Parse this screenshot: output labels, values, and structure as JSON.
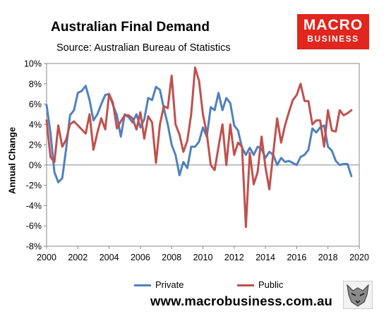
{
  "header": {
    "title": "Australian Final Demand",
    "subtitle": "Source: Australian Bureau of Statistics"
  },
  "logo": {
    "line1": "MACRO",
    "line2": "BUSINESS",
    "color": "#e0261d"
  },
  "footer": {
    "url": "www.macrobusiness.com.au"
  },
  "chart_data": {
    "type": "line",
    "ylabel": "Annual Change",
    "xlim": [
      2000,
      2020
    ],
    "ylim": [
      -8,
      10
    ],
    "y_ticks": [
      -8,
      -6,
      -4,
      -2,
      0,
      2,
      4,
      6,
      8,
      10
    ],
    "y_tick_labels": [
      "-8%",
      "-6%",
      "-4%",
      "-2%",
      "0%",
      "2%",
      "4%",
      "6%",
      "8%",
      "10%"
    ],
    "x_ticks": [
      2000,
      2002,
      2004,
      2006,
      2008,
      2010,
      2012,
      2014,
      2016,
      2018,
      2020
    ],
    "x_tick_labels": [
      "2000",
      "2002",
      "2004",
      "2006",
      "2008",
      "2010",
      "2012",
      "2014",
      "2016",
      "2018",
      "2020"
    ],
    "grid": false,
    "legend_position": "bottom",
    "series": [
      {
        "name": "Private",
        "color": "#4f81bd",
        "points": [
          [
            2000.0,
            5.9
          ],
          [
            2000.25,
            3.2
          ],
          [
            2000.5,
            -0.7
          ],
          [
            2000.75,
            -1.7
          ],
          [
            2001.0,
            -1.3
          ],
          [
            2001.25,
            1.6
          ],
          [
            2001.5,
            4.9
          ],
          [
            2001.75,
            5.4
          ],
          [
            2002.0,
            7.1
          ],
          [
            2002.25,
            7.3
          ],
          [
            2002.5,
            7.8
          ],
          [
            2002.75,
            6.4
          ],
          [
            2003.0,
            4.4
          ],
          [
            2003.25,
            5.0
          ],
          [
            2003.5,
            6.0
          ],
          [
            2003.75,
            6.9
          ],
          [
            2004.0,
            7.0
          ],
          [
            2004.25,
            5.9
          ],
          [
            2004.5,
            4.9
          ],
          [
            2004.75,
            2.8
          ],
          [
            2005.0,
            5.0
          ],
          [
            2005.25,
            4.7
          ],
          [
            2005.5,
            4.2
          ],
          [
            2005.75,
            5.0
          ],
          [
            2006.0,
            3.7
          ],
          [
            2006.25,
            4.5
          ],
          [
            2006.5,
            6.6
          ],
          [
            2006.75,
            6.4
          ],
          [
            2007.0,
            7.7
          ],
          [
            2007.25,
            7.4
          ],
          [
            2007.5,
            5.6
          ],
          [
            2007.75,
            4.0
          ],
          [
            2008.0,
            2.0
          ],
          [
            2008.25,
            1.0
          ],
          [
            2008.5,
            -1.0
          ],
          [
            2008.75,
            0.3
          ],
          [
            2009.0,
            -0.3
          ],
          [
            2009.25,
            1.8
          ],
          [
            2009.5,
            1.8
          ],
          [
            2009.75,
            2.3
          ],
          [
            2010.0,
            3.7
          ],
          [
            2010.25,
            2.8
          ],
          [
            2010.5,
            5.7
          ],
          [
            2010.75,
            5.4
          ],
          [
            2011.0,
            7.1
          ],
          [
            2011.25,
            5.4
          ],
          [
            2011.5,
            6.6
          ],
          [
            2011.75,
            6.1
          ],
          [
            2012.0,
            3.9
          ],
          [
            2012.25,
            3.4
          ],
          [
            2012.5,
            1.7
          ],
          [
            2012.75,
            1.0
          ],
          [
            2013.0,
            1.7
          ],
          [
            2013.25,
            1.0
          ],
          [
            2013.5,
            1.8
          ],
          [
            2013.75,
            1.6
          ],
          [
            2014.0,
            0.7
          ],
          [
            2014.25,
            1.3
          ],
          [
            2014.5,
            1.0
          ],
          [
            2014.75,
            0.0
          ],
          [
            2015.0,
            0.7
          ],
          [
            2015.25,
            0.3
          ],
          [
            2015.5,
            0.4
          ],
          [
            2015.75,
            0.2
          ],
          [
            2016.0,
            0.0
          ],
          [
            2016.25,
            0.8
          ],
          [
            2016.5,
            1.0
          ],
          [
            2016.75,
            1.5
          ],
          [
            2017.0,
            3.6
          ],
          [
            2017.25,
            3.2
          ],
          [
            2017.5,
            3.7
          ],
          [
            2017.75,
            3.9
          ],
          [
            2018.0,
            1.8
          ],
          [
            2018.25,
            1.4
          ],
          [
            2018.5,
            0.4
          ],
          [
            2018.75,
            0.0
          ],
          [
            2019.0,
            0.1
          ],
          [
            2019.25,
            0.1
          ],
          [
            2019.5,
            -1.1
          ]
        ]
      },
      {
        "name": "Public",
        "color": "#c0504d",
        "points": [
          [
            2000.0,
            4.4
          ],
          [
            2000.25,
            0.8
          ],
          [
            2000.5,
            0.3
          ],
          [
            2000.75,
            3.9
          ],
          [
            2001.0,
            1.8
          ],
          [
            2001.25,
            2.5
          ],
          [
            2001.5,
            4.0
          ],
          [
            2001.75,
            4.3
          ],
          [
            2002.0,
            3.9
          ],
          [
            2002.25,
            3.5
          ],
          [
            2002.5,
            3.1
          ],
          [
            2002.75,
            5.0
          ],
          [
            2003.0,
            1.5
          ],
          [
            2003.25,
            3.2
          ],
          [
            2003.5,
            4.6
          ],
          [
            2003.75,
            3.5
          ],
          [
            2004.0,
            7.0
          ],
          [
            2004.25,
            6.1
          ],
          [
            2004.5,
            3.6
          ],
          [
            2004.75,
            4.3
          ],
          [
            2005.0,
            4.9
          ],
          [
            2005.25,
            4.9
          ],
          [
            2005.5,
            4.6
          ],
          [
            2005.75,
            3.5
          ],
          [
            2006.0,
            5.2
          ],
          [
            2006.25,
            2.6
          ],
          [
            2006.5,
            4.8
          ],
          [
            2006.75,
            4.2
          ],
          [
            2007.0,
            0.2
          ],
          [
            2007.25,
            4.0
          ],
          [
            2007.5,
            5.8
          ],
          [
            2007.75,
            5.6
          ],
          [
            2008.0,
            8.8
          ],
          [
            2008.25,
            4.0
          ],
          [
            2008.5,
            3.0
          ],
          [
            2008.75,
            1.3
          ],
          [
            2009.0,
            2.4
          ],
          [
            2009.25,
            5.0
          ],
          [
            2009.5,
            9.6
          ],
          [
            2009.75,
            8.3
          ],
          [
            2010.0,
            5.0
          ],
          [
            2010.25,
            3.1
          ],
          [
            2010.5,
            0.0
          ],
          [
            2010.75,
            -0.5
          ],
          [
            2011.0,
            1.8
          ],
          [
            2011.25,
            4.0
          ],
          [
            2011.5,
            0.0
          ],
          [
            2011.75,
            4.0
          ],
          [
            2012.0,
            1.0
          ],
          [
            2012.25,
            2.2
          ],
          [
            2012.5,
            1.8
          ],
          [
            2012.75,
            -6.1
          ],
          [
            2013.0,
            1.2
          ],
          [
            2013.25,
            -1.9
          ],
          [
            2013.5,
            -0.7
          ],
          [
            2013.75,
            2.8
          ],
          [
            2014.0,
            -0.2
          ],
          [
            2014.25,
            -2.4
          ],
          [
            2014.5,
            1.2
          ],
          [
            2014.75,
            4.6
          ],
          [
            2015.0,
            2.2
          ],
          [
            2015.25,
            3.9
          ],
          [
            2015.5,
            5.2
          ],
          [
            2015.75,
            6.4
          ],
          [
            2016.0,
            6.9
          ],
          [
            2016.25,
            8.0
          ],
          [
            2016.5,
            6.3
          ],
          [
            2016.75,
            6.3
          ],
          [
            2017.0,
            4.0
          ],
          [
            2017.25,
            4.4
          ],
          [
            2017.5,
            4.4
          ],
          [
            2017.75,
            1.8
          ],
          [
            2018.0,
            5.4
          ],
          [
            2018.25,
            3.4
          ],
          [
            2018.5,
            3.3
          ],
          [
            2018.75,
            5.4
          ],
          [
            2019.0,
            4.9
          ],
          [
            2019.25,
            5.1
          ],
          [
            2019.5,
            5.4
          ]
        ]
      }
    ]
  }
}
